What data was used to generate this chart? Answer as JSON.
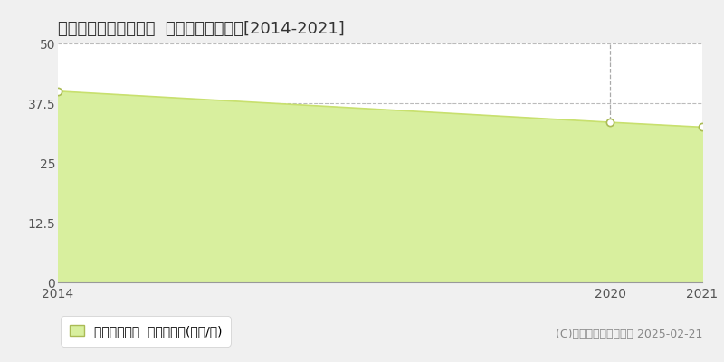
{
  "title": "新潟市西区ときめき西  収益物件価格推移[2014-2021]",
  "years": [
    2014,
    2020,
    2021
  ],
  "values": [
    40.0,
    33.5,
    32.5
  ],
  "line_color": "#c8e06e",
  "fill_color": "#d8ef9e",
  "marker_color": "#ffffff",
  "marker_edge_color": "#aabb55",
  "background_color": "#f0f0f0",
  "plot_bg_color": "#ffffff",
  "ylim": [
    0,
    50
  ],
  "yticks": [
    0,
    12.5,
    25,
    37.5,
    50
  ],
  "grid_color": "#bbbbbb",
  "vline_x": 2020,
  "vline_color": "#aaaaaa",
  "legend_label": "収益物件価格  平均坪単価(万円/坪)",
  "copyright_text": "(C)土地価格ドットコム 2025-02-21",
  "title_fontsize": 13,
  "tick_fontsize": 10,
  "legend_fontsize": 10,
  "copyright_fontsize": 9,
  "xlim": [
    2014,
    2021
  ]
}
